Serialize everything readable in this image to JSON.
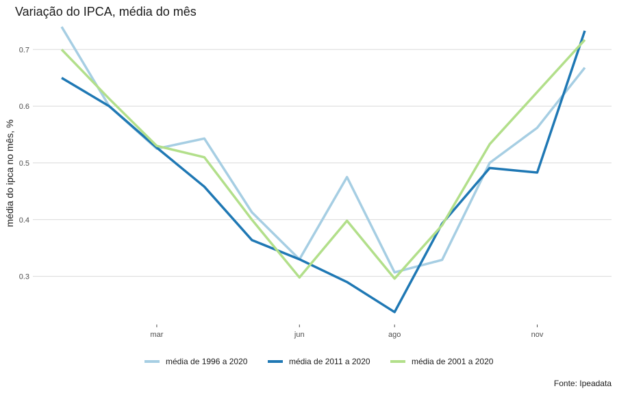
{
  "chart_data": {
    "type": "line",
    "title": "Variação do IPCA, média do mês",
    "xlabel": "",
    "ylabel": "média do ipca no mês, %",
    "caption": "Fonte: Ipeadata",
    "x": [
      1,
      2,
      3,
      4,
      5,
      6,
      7,
      8,
      9,
      10,
      11,
      12
    ],
    "xlim": [
      1,
      12
    ],
    "ylim": [
      0.215,
      0.745
    ],
    "x_ticks": [
      {
        "value": 3,
        "label": "mar"
      },
      {
        "value": 6,
        "label": "jun"
      },
      {
        "value": 8,
        "label": "ago"
      },
      {
        "value": 11,
        "label": "nov"
      }
    ],
    "y_ticks": [
      {
        "value": 0.3,
        "label": "0.3"
      },
      {
        "value": 0.4,
        "label": "0.4"
      },
      {
        "value": 0.5,
        "label": "0.5"
      },
      {
        "value": 0.6,
        "label": "0.6"
      },
      {
        "value": 0.7,
        "label": "0.7"
      }
    ],
    "grid": "horizontal",
    "legend_position": "bottom",
    "series": [
      {
        "name": "média de 1996 a 2020",
        "color": "#a6cee3",
        "values": [
          0.74,
          0.6,
          0.525,
          0.543,
          0.413,
          0.33,
          0.475,
          0.307,
          0.329,
          0.5,
          0.562,
          0.668
        ]
      },
      {
        "name": "média de 2011 a 2020",
        "color": "#1f78b4",
        "values": [
          0.65,
          0.6,
          0.527,
          0.458,
          0.364,
          0.33,
          0.29,
          0.237,
          0.393,
          0.491,
          0.483,
          0.733
        ]
      },
      {
        "name": "média de 2001 a 2020",
        "color": "#b2df8a",
        "values": [
          0.7,
          0.613,
          0.53,
          0.51,
          0.4,
          0.298,
          0.398,
          0.296,
          0.39,
          0.533,
          0.625,
          0.717
        ]
      }
    ]
  }
}
